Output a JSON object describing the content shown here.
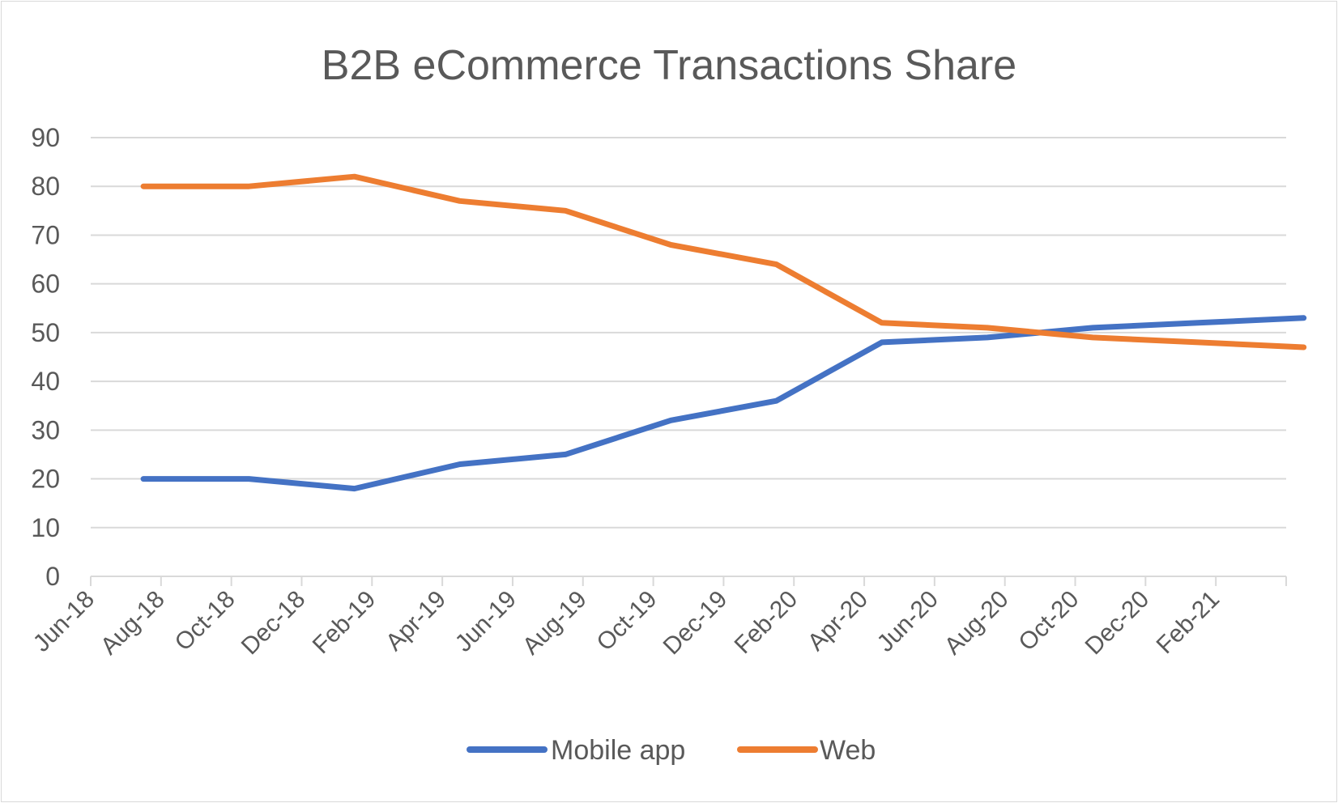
{
  "chart_data": {
    "type": "line",
    "title": "B2B eCommerce Transactions Share",
    "xlabel": "",
    "ylabel": "",
    "ylim": [
      0,
      90
    ],
    "ytick_step": 10,
    "grid": true,
    "legend_position": "bottom",
    "x_tick_labels": [
      "Jun-18",
      "Aug-18",
      "Oct-18",
      "Dec-18",
      "Feb-19",
      "Apr-19",
      "Jun-19",
      "Aug-19",
      "Oct-19",
      "Dec-19",
      "Feb-20",
      "Apr-20",
      "Jun-20",
      "Aug-20",
      "Oct-20",
      "Dec-20",
      "Feb-21"
    ],
    "x": [
      "2018-07",
      "2018-10",
      "2019-01",
      "2019-04",
      "2019-07",
      "2019-10",
      "2020-01",
      "2020-04",
      "2020-07",
      "2020-10",
      "2021-01",
      "2021-04"
    ],
    "series": [
      {
        "name": "Mobile app",
        "color": "#4472C4",
        "values": [
          20,
          20,
          18,
          23,
          25,
          32,
          36,
          48,
          49,
          51,
          52,
          53
        ]
      },
      {
        "name": "Web",
        "color": "#ED7D31",
        "values": [
          80,
          80,
          82,
          77,
          75,
          68,
          64,
          52,
          51,
          49,
          48,
          47
        ]
      }
    ]
  }
}
